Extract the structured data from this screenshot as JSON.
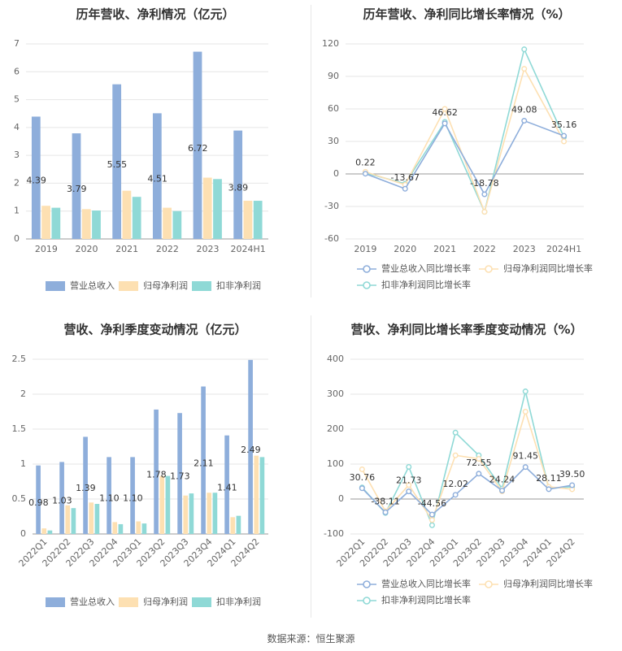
{
  "footer": "数据来源：恒生聚源",
  "colors": {
    "revenue": "#8eaedb",
    "net": "#fde0b2",
    "deducted": "#8fd9d6",
    "grid": "#e6e6e6",
    "axis": "#999999",
    "tick": "#666666",
    "title": "#333333",
    "label": "#333333"
  },
  "chart_data": [
    {
      "id": "annual-bar",
      "type": "bar",
      "title": "历年营收、净利情况（亿元）",
      "categories": [
        "2019",
        "2020",
        "2021",
        "2022",
        "2023",
        "2024H1"
      ],
      "series": [
        {
          "name": "营业总收入",
          "values": [
            4.39,
            3.79,
            5.55,
            4.51,
            6.72,
            3.89
          ],
          "show_labels": true
        },
        {
          "name": "归母净利润",
          "values": [
            1.19,
            1.07,
            1.73,
            1.12,
            2.2,
            1.37
          ]
        },
        {
          "name": "扣非净利润",
          "values": [
            1.12,
            1.02,
            1.51,
            1.0,
            2.15,
            1.37
          ]
        }
      ],
      "ylim": [
        0,
        7
      ],
      "yticks": [
        0,
        1,
        2,
        3,
        4,
        5,
        6,
        7
      ],
      "ytick_labels": [
        "0",
        "1",
        "2",
        "3",
        "4",
        "5",
        "6",
        "7"
      ],
      "legend": "bottom"
    },
    {
      "id": "annual-line",
      "type": "line",
      "title": "历年营收、净利同比增长率情况（%）",
      "categories": [
        "2019",
        "2020",
        "2021",
        "2022",
        "2023",
        "2024H1"
      ],
      "series": [
        {
          "name": "营业总收入同比增长率",
          "values": [
            0.22,
            -13.67,
            46.62,
            -18.78,
            49.08,
            35.16
          ],
          "show_labels": true
        },
        {
          "name": "归母净利润同比增长率",
          "values": [
            2,
            -10,
            60,
            -35,
            97,
            30
          ]
        },
        {
          "name": "扣非净利润同比增长率",
          "values": [
            1,
            -9,
            48,
            -35,
            115,
            34
          ]
        }
      ],
      "data_labels": [
        "0.22",
        "-13.67",
        "46.62",
        "-18.78",
        "49.08",
        "35.16"
      ],
      "ylim": [
        -60,
        120
      ],
      "yticks": [
        -60,
        -30,
        0,
        30,
        60,
        90,
        120
      ],
      "ytick_labels": [
        "-60",
        "-30",
        "0",
        "30",
        "60",
        "90",
        "120"
      ],
      "legend": "bottom"
    },
    {
      "id": "quarter-bar",
      "type": "bar",
      "title": "营收、净利季度变动情况（亿元）",
      "categories": [
        "2022Q1",
        "2022Q2",
        "2022Q3",
        "2022Q4",
        "2023Q1",
        "2023Q2",
        "2023Q3",
        "2023Q4",
        "2024Q1",
        "2024Q2"
      ],
      "series": [
        {
          "name": "营业总收入",
          "values": [
            0.98,
            1.03,
            1.39,
            1.1,
            1.1,
            1.78,
            1.73,
            2.11,
            1.41,
            2.49
          ],
          "show_labels": true
        },
        {
          "name": "归母净利润",
          "values": [
            0.08,
            0.41,
            0.45,
            0.17,
            0.18,
            0.83,
            0.55,
            0.59,
            0.24,
            1.12
          ]
        },
        {
          "name": "扣非净利润",
          "values": [
            0.05,
            0.37,
            0.43,
            0.14,
            0.15,
            0.83,
            0.58,
            0.59,
            0.26,
            1.1
          ]
        }
      ],
      "ylim": [
        0,
        2.5
      ],
      "yticks": [
        0,
        0.5,
        1,
        1.5,
        2,
        2.5
      ],
      "ytick_labels": [
        "0",
        "0.5",
        "1",
        "1.5",
        "2",
        "2.5"
      ],
      "legend": "bottom"
    },
    {
      "id": "quarter-line",
      "type": "line",
      "title": "营收、净利同比增长率季度变动情况（%）",
      "categories": [
        "2022Q1",
        "2022Q2",
        "2022Q3",
        "2022Q4",
        "2023Q1",
        "2023Q2",
        "2023Q3",
        "2023Q4",
        "2024Q1",
        "2024Q2"
      ],
      "series": [
        {
          "name": "营业总收入同比增长率",
          "values": [
            30.76,
            -38.11,
            21.73,
            -44.56,
            12.02,
            72.55,
            24.24,
            91.45,
            28.11,
            39.5
          ],
          "show_labels": true
        },
        {
          "name": "归母净利润同比增长率",
          "values": [
            85,
            -35,
            40,
            -60,
            125,
            115,
            22,
            250,
            35,
            28
          ]
        },
        {
          "name": "扣非净利润同比增长率",
          "values": [
            33,
            -40,
            92,
            -75,
            190,
            125,
            30,
            308,
            30,
            35
          ]
        }
      ],
      "data_labels": [
        "30.76",
        "-38.11",
        "21.73",
        "-44.56",
        "12.02",
        "72.55",
        "24.24",
        "91.45",
        "28.11",
        "39.50"
      ],
      "ylim": [
        -100,
        400
      ],
      "yticks": [
        -100,
        0,
        100,
        200,
        300,
        400
      ],
      "ytick_labels": [
        "-100",
        "0",
        "100",
        "200",
        "300",
        "400"
      ],
      "legend": "bottom"
    }
  ]
}
